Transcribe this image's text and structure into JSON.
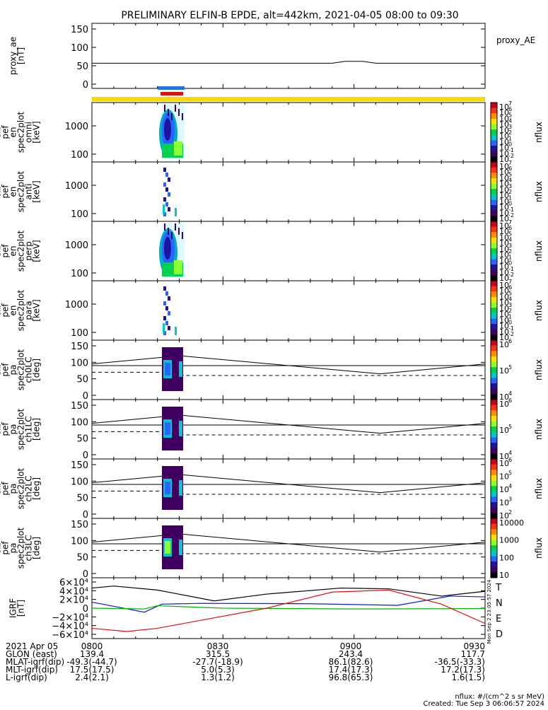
{
  "header": {
    "title": "PRELIMINARY ELFIN-B EPDE, alt=442km, 2021-04-05 08:00 to 09:30"
  },
  "panels": [
    {
      "label": [
        "proxy_ae",
        "[nT]"
      ],
      "rlabel": "proxy_AE",
      "ticks": [
        "150",
        "100",
        "50",
        "0"
      ]
    },
    {
      "label": [
        "elb",
        "pef",
        "en",
        "spec2plot",
        "omni",
        "[keV]"
      ],
      "rlabel": "nflux",
      "ticks": [
        "1000",
        "100"
      ],
      "cbar": [
        "10",
        "10",
        "10",
        "10",
        "10",
        "10",
        "10",
        "10",
        "10",
        "10"
      ],
      "cexp": [
        "7",
        "6",
        "5",
        "4",
        "3",
        "2",
        "1",
        "0",
        "-1",
        "-2"
      ]
    },
    {
      "label": [
        "elb",
        "pef",
        "en",
        "spec2plot",
        "anti",
        "[keV]"
      ],
      "rlabel": "nflux",
      "ticks": [
        "1000",
        "100"
      ],
      "cbar": [
        "10",
        "10",
        "10",
        "10",
        "10",
        "10",
        "10",
        "10",
        "10",
        "10"
      ],
      "cexp": [
        "7",
        "6",
        "5",
        "4",
        "3",
        "2",
        "1",
        "0",
        "-1",
        "-2"
      ]
    },
    {
      "label": [
        "elb",
        "pef",
        "en",
        "spec2plot",
        "perp",
        "[keV]"
      ],
      "rlabel": "nflux",
      "ticks": [
        "1000",
        "100"
      ],
      "cbar": [
        "10",
        "10",
        "10",
        "10",
        "10",
        "10",
        "10",
        "10",
        "10",
        "10"
      ],
      "cexp": [
        "7",
        "6",
        "5",
        "4",
        "3",
        "2",
        "1",
        "0",
        "-1",
        "-2"
      ]
    },
    {
      "label": [
        "elb",
        "pef",
        "en",
        "spec2plot",
        "para",
        "[keV]"
      ],
      "rlabel": "nflux",
      "ticks": [
        "1000",
        "100"
      ],
      "cbar": [
        "10",
        "10",
        "10",
        "10",
        "10",
        "10",
        "10",
        "10",
        "10",
        "10"
      ],
      "cexp": [
        "7",
        "6",
        "5",
        "4",
        "3",
        "2",
        "1",
        "0",
        "-1",
        "-2"
      ]
    },
    {
      "label": [
        "elb",
        "pef",
        "pa",
        "spec2plot",
        "ch0LC",
        "[deg]"
      ],
      "rlabel": "nflux",
      "ticks": [
        "150",
        "100",
        "50",
        "0"
      ],
      "cbar": [
        "10",
        "10",
        "10"
      ],
      "cexp": [
        "6",
        "5",
        "4"
      ]
    },
    {
      "label": [
        "elb",
        "pef",
        "pa",
        "spec2plot",
        "ch1LC",
        "[deg]"
      ],
      "rlabel": "nflux",
      "ticks": [
        "150",
        "100",
        "50",
        "0"
      ],
      "cbar": [
        "10",
        "10",
        "10"
      ],
      "cexp": [
        "6",
        "5",
        "4"
      ]
    },
    {
      "label": [
        "elb",
        "pef",
        "pa",
        "spec2plot",
        "ch2LC",
        "[deg]"
      ],
      "rlabel": "nflux",
      "ticks": [
        "150",
        "100",
        "50",
        "0"
      ],
      "cbar": [
        "10",
        "10",
        "10",
        "10",
        "10"
      ],
      "cexp": [
        "6",
        "5",
        "4",
        "3",
        "2"
      ]
    },
    {
      "label": [
        "elb",
        "pef",
        "pa",
        "spec2plot",
        "ch3LC",
        "[deg]"
      ],
      "rlabel": "nflux",
      "ticks": [
        "150",
        "100",
        "50",
        "0"
      ],
      "cbar": [
        "10000",
        "1000",
        "100",
        "10"
      ],
      "cexp": [
        "",
        "",
        "",
        ""
      ]
    },
    {
      "label": [
        "IGRF",
        "[nT]"
      ],
      "ticks": [
        "6×10⁴",
        "4×10⁴",
        "2×10⁴",
        "0",
        "−2×10⁴",
        "−4×10⁴",
        "−6×10⁴"
      ],
      "components": [
        "T",
        "N",
        "E",
        "D"
      ]
    }
  ],
  "chart_data": {
    "type": "line",
    "x_ticks": [
      "0800",
      "0830",
      "0900",
      "0930"
    ],
    "proxy_ae": {
      "ylim": [
        0,
        150
      ],
      "x": [
        0,
        30,
        55,
        58,
        62,
        65,
        90
      ],
      "y": [
        57,
        57,
        57,
        62,
        62,
        57,
        57
      ]
    },
    "igrf": {
      "ylim": [
        -65000,
        65000
      ],
      "T": {
        "x": [
          0,
          5,
          15,
          28,
          40,
          57,
          68,
          80,
          90
        ],
        "y": [
          50000,
          55000,
          45000,
          18000,
          35000,
          50000,
          48000,
          30000,
          42000
        ]
      },
      "N": {
        "x": [
          0,
          12,
          16,
          25,
          50,
          70,
          82,
          90
        ],
        "y": [
          15000,
          -10000,
          10000,
          12000,
          11000,
          7000,
          30000,
          28000
        ]
      },
      "E": {
        "x": [
          0,
          12,
          15,
          30,
          60,
          90
        ],
        "y": [
          0,
          -2000,
          6000,
          0,
          -2000,
          -1000
        ]
      },
      "D": {
        "x": [
          0,
          8,
          15,
          25,
          40,
          55,
          68,
          80,
          90
        ],
        "y": [
          -50000,
          -58000,
          -50000,
          -30000,
          0,
          40000,
          45000,
          10000,
          -38000
        ]
      }
    },
    "lc_lines": {
      "upper_start": 95,
      "upper_peak": 120,
      "upper_min": 65,
      "upper_end": 95,
      "lower_start": 70,
      "lower_after": 60
    }
  },
  "footer": {
    "rows": [
      [
        "2021 Apr 05",
        "0800",
        "0830",
        "0900",
        "0930"
      ],
      [
        "GLON (east)",
        "139.4",
        "315.5",
        "243.4",
        "117.7"
      ],
      [
        "MLAT-igrf(dip)",
        "-49.3(-44.7)",
        "-27.7(-18.9)",
        "86.1(82.6)",
        "-36.5(-33.3)"
      ],
      [
        "MLT-igrf(dip)",
        "17.5(17.5)",
        "5.0(5.3)",
        "17.4(17.3)",
        "17.2(17.3)"
      ],
      [
        "L-igrf(dip)",
        "2.4(2.1)",
        "1.3(1.2)",
        "96.8(65.3)",
        "1.6(1.5)"
      ]
    ],
    "note1": "nflux: #/(cm^2 s sr MeV)",
    "note2": "Created: Tue Sep  3 06:06:57 2024",
    "side_stamp": "Mon Sep  2 23:05:57 2024"
  }
}
